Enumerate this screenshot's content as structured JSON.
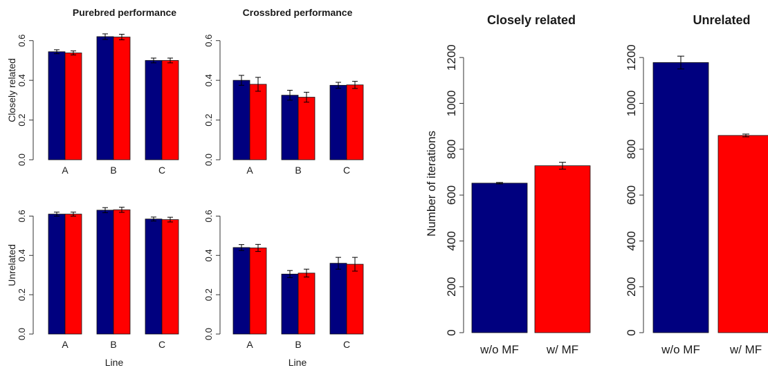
{
  "colors": {
    "without_mf": "#00007f",
    "with_mf": "#ff0000"
  },
  "left_panel": {
    "column_titles": [
      "Purebred performance",
      "Crossbred performance"
    ],
    "row_labels": [
      "Closely related",
      "Unrelated"
    ],
    "xlabel": "Line"
  },
  "right_panel": {
    "ylabel": "Number of iterations"
  },
  "chart_data": [
    {
      "type": "bar",
      "title": "Purebred performance",
      "ylabel": "Closely related",
      "xlabel": "",
      "categories": [
        "A",
        "B",
        "C"
      ],
      "series": [
        {
          "color": "#00007f",
          "values": [
            0.544,
            0.62,
            0.5
          ],
          "errors": [
            0.01,
            0.014,
            0.012
          ]
        },
        {
          "color": "#ff0000",
          "values": [
            0.538,
            0.618,
            0.5
          ],
          "errors": [
            0.01,
            0.014,
            0.012
          ]
        }
      ],
      "ylim": [
        0,
        0.7
      ],
      "yticks": [
        "0.0",
        "0.2",
        "0.4",
        "0.6"
      ]
    },
    {
      "type": "bar",
      "title": "Crossbred performance",
      "ylabel": "",
      "xlabel": "",
      "categories": [
        "A",
        "B",
        "C"
      ],
      "series": [
        {
          "color": "#00007f",
          "values": [
            0.4,
            0.325,
            0.375
          ],
          "errors": [
            0.025,
            0.025,
            0.015
          ]
        },
        {
          "color": "#ff0000",
          "values": [
            0.38,
            0.315,
            0.377
          ],
          "errors": [
            0.035,
            0.025,
            0.018
          ]
        }
      ],
      "ylim": [
        0,
        0.7
      ],
      "yticks": [
        "0.0",
        "0.2",
        "0.4",
        "0.6"
      ]
    },
    {
      "type": "bar",
      "title": "",
      "ylabel": "Unrelated",
      "xlabel": "Line",
      "categories": [
        "A",
        "B",
        "C"
      ],
      "series": [
        {
          "color": "#00007f",
          "values": [
            0.61,
            0.63,
            0.585
          ],
          "errors": [
            0.01,
            0.013,
            0.01
          ]
        },
        {
          "color": "#ff0000",
          "values": [
            0.61,
            0.632,
            0.582
          ],
          "errors": [
            0.01,
            0.013,
            0.012
          ]
        }
      ],
      "ylim": [
        0,
        0.7
      ],
      "yticks": [
        "0.0",
        "0.2",
        "0.4",
        "0.6"
      ]
    },
    {
      "type": "bar",
      "title": "",
      "ylabel": "",
      "xlabel": "Line",
      "categories": [
        "A",
        "B",
        "C"
      ],
      "series": [
        {
          "color": "#00007f",
          "values": [
            0.44,
            0.305,
            0.36
          ],
          "errors": [
            0.015,
            0.018,
            0.03
          ]
        },
        {
          "color": "#ff0000",
          "values": [
            0.438,
            0.31,
            0.355
          ],
          "errors": [
            0.018,
            0.02,
            0.035
          ]
        }
      ],
      "ylim": [
        0,
        0.7
      ],
      "yticks": [
        "0.0",
        "0.2",
        "0.4",
        "0.6"
      ]
    },
    {
      "type": "bar",
      "title": "Closely related",
      "ylabel": "Number of iterations",
      "xlabel": "",
      "categories": [
        "w/o MF",
        "w/ MF"
      ],
      "values": [
        652,
        728
      ],
      "errors": [
        3,
        15
      ],
      "colors": [
        "#00007f",
        "#ff0000"
      ],
      "ylim": [
        0,
        1300
      ],
      "yticks": [
        "0",
        "200",
        "400",
        "600",
        "800",
        "1000",
        "1200"
      ]
    },
    {
      "type": "bar",
      "title": "Unrelated",
      "ylabel": "",
      "xlabel": "",
      "categories": [
        "w/o MF",
        "w/ MF"
      ],
      "values": [
        1178,
        860
      ],
      "errors": [
        28,
        6
      ],
      "colors": [
        "#00007f",
        "#ff0000"
      ],
      "ylim": [
        0,
        1300
      ],
      "yticks": [
        "0",
        "200",
        "400",
        "600",
        "800",
        "1000",
        "1200"
      ]
    }
  ]
}
